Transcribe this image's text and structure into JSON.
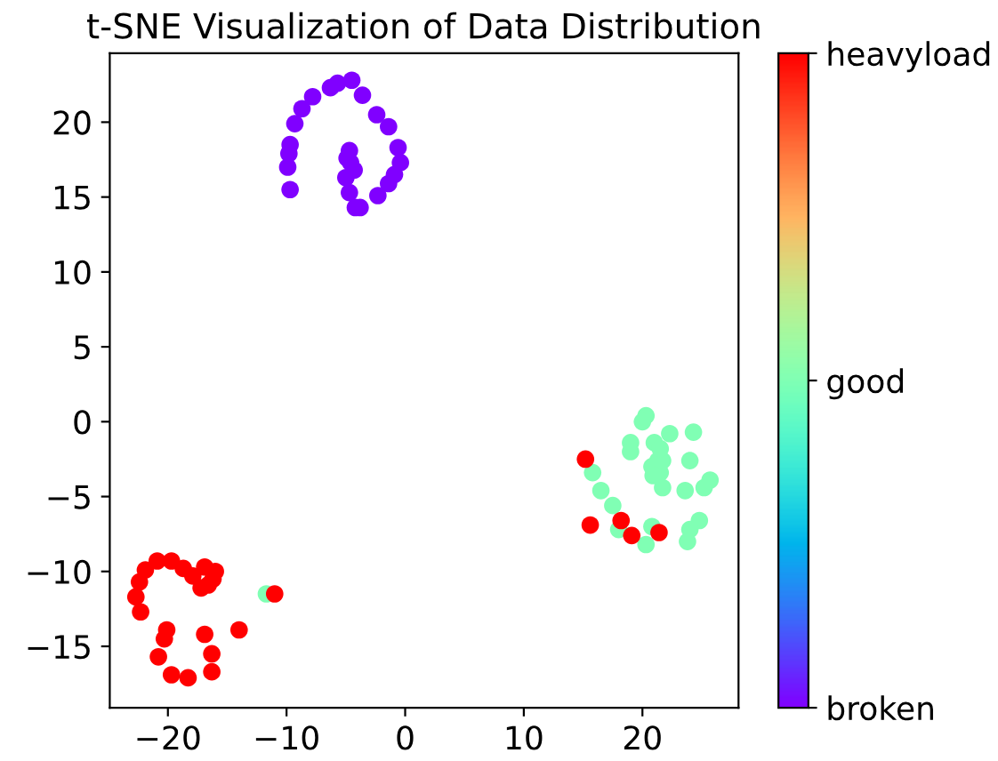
{
  "chart_data": {
    "type": "scatter",
    "title": "t-SNE Visualization of Data Distribution",
    "x": [
      -9.7,
      -9.9,
      -9.8,
      -9.7,
      -9.3,
      -8.7,
      -7.8,
      -6.3,
      -5.7,
      -4.5,
      -3.6,
      -2.4,
      -1.4,
      -0.6,
      -0.4,
      -0.9,
      -1.4,
      -2.3,
      -3.8,
      -4.2,
      -4.6,
      -4.7,
      -5.0,
      -4.7,
      -4.3,
      -4.9,
      20.3,
      20.0,
      19.0,
      19.0,
      22.3,
      24.3,
      24.0,
      21.3,
      20.8,
      21.5,
      21.7,
      23.6,
      25.2,
      25.7,
      24.8,
      24.0,
      23.8,
      15.8,
      16.5,
      17.5,
      18.0,
      20.3,
      20.8,
      21.7,
      21.0,
      21.5,
      20.9,
      -11.7,
      15.2,
      15.6,
      18.2,
      19.1,
      21.4,
      -11.0,
      -22.3,
      -22.7,
      -22.4,
      -21.9,
      -20.9,
      -19.7,
      -18.7,
      -17.9,
      -16.9,
      -16.2,
      -17.2,
      -16.0,
      -16.6,
      -20.1,
      -20.3,
      -20.8,
      -19.7,
      -18.3,
      -16.9,
      -16.3,
      -16.3,
      -14.0
    ],
    "values": [
      15.5,
      17.0,
      17.9,
      18.5,
      19.9,
      20.9,
      21.7,
      22.3,
      22.6,
      22.8,
      21.8,
      20.5,
      19.7,
      18.3,
      17.3,
      16.5,
      15.9,
      15.1,
      14.3,
      14.3,
      17.3,
      18.1,
      16.3,
      15.3,
      16.8,
      17.6,
      0.4,
      0.0,
      -1.4,
      -2.0,
      -0.8,
      -0.7,
      -2.6,
      -2.6,
      -3.0,
      -3.4,
      -4.4,
      -4.6,
      -4.4,
      -3.9,
      -6.6,
      -7.2,
      -8.0,
      -3.4,
      -4.6,
      -5.6,
      -7.2,
      -8.2,
      -7.0,
      -2.6,
      -1.4,
      -1.8,
      -3.6,
      -11.5,
      -2.5,
      -6.9,
      -6.6,
      -7.6,
      -7.4,
      -11.5,
      -12.7,
      -11.7,
      -10.7,
      -9.9,
      -9.3,
      -9.3,
      -9.8,
      -10.3,
      -9.7,
      -10.5,
      -11.1,
      -10.0,
      -10.9,
      -13.9,
      -14.5,
      -15.7,
      -16.9,
      -17.1,
      -14.2,
      -15.5,
      -16.7,
      -13.9
    ],
    "cvalues": [
      0,
      0,
      0,
      0,
      0,
      0,
      0,
      0,
      0,
      0,
      0,
      0,
      0,
      0,
      0,
      0,
      0,
      0,
      0,
      0,
      0,
      0,
      0,
      0,
      0,
      0,
      1,
      1,
      1,
      1,
      1,
      1,
      1,
      1,
      1,
      1,
      1,
      1,
      1,
      1,
      1,
      1,
      1,
      1,
      1,
      1,
      1,
      1,
      1,
      1,
      1,
      1,
      1,
      1,
      2,
      2,
      2,
      2,
      2,
      2,
      2,
      2,
      2,
      2,
      2,
      2,
      2,
      2,
      2,
      2,
      2,
      2,
      2,
      2,
      2,
      2,
      2,
      2,
      2,
      2,
      2,
      2
    ],
    "xlim": [
      -24.9,
      28.1
    ],
    "ylim": [
      -19.1,
      24.6
    ],
    "xticks": [
      {
        "value": -20,
        "label": "−20"
      },
      {
        "value": -10,
        "label": "−10"
      },
      0,
      10,
      20
    ],
    "yticks": [
      {
        "value": -15,
        "label": "−15"
      },
      {
        "value": -10,
        "label": "−10"
      },
      {
        "value": -5,
        "label": "−5"
      },
      0,
      5,
      10,
      15,
      20
    ],
    "clim": [
      0,
      2
    ],
    "cticks": [
      {
        "value": 0,
        "label": "broken"
      },
      {
        "value": 1,
        "label": "good"
      },
      {
        "value": 2,
        "label": "heavyload"
      }
    ],
    "marker": "circle",
    "grid": false,
    "legend": false
  }
}
